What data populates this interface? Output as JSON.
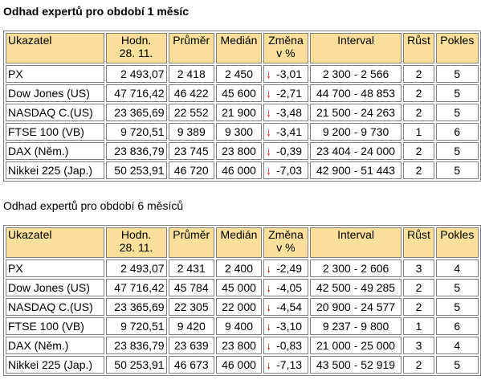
{
  "sections": [
    {
      "title": "Odhad expertů pro období 1 měsíc",
      "bold": true,
      "headers": [
        "Ukazatel",
        "Hodn.\n28. 11.",
        "Průměr",
        "Medián",
        "Změna\nv %",
        "Interval",
        "Růst",
        "Pokles"
      ],
      "rows": [
        {
          "name": "PX",
          "value": "2 493,07",
          "avg": "2 418",
          "median": "2 450",
          "arrow": "↓",
          "change": "-3,01",
          "interval": "2 300 - 2 566",
          "up": "2",
          "down": "5"
        },
        {
          "name": "Dow Jones (US)",
          "value": "47 716,42",
          "avg": "46 422",
          "median": "45 600",
          "arrow": "↓",
          "change": "-2,71",
          "interval": "44 700 - 48 853",
          "up": "2",
          "down": "5"
        },
        {
          "name": "NASDAQ C.(US)",
          "value": "23 365,69",
          "avg": "22 552",
          "median": "21 900",
          "arrow": "↓",
          "change": "-3,48",
          "interval": "21 500 - 24 263",
          "up": "2",
          "down": "5"
        },
        {
          "name": "FTSE 100 (VB)",
          "value": "9 720,51",
          "avg": "9 389",
          "median": "9 300",
          "arrow": "↓",
          "change": "-3,41",
          "interval": "9 200 - 9 730",
          "up": "1",
          "down": "6"
        },
        {
          "name": "DAX (Něm.)",
          "value": "23 836,79",
          "avg": "23 745",
          "median": "23 800",
          "arrow": "↓",
          "change": "-0,39",
          "interval": "23 404 - 24 000",
          "up": "2",
          "down": "5"
        },
        {
          "name": "Nikkei 225 (Jap.)",
          "value": "50 253,91",
          "avg": "46 720",
          "median": "46 000",
          "arrow": "↓",
          "change": "-7,03",
          "interval": "42 900 - 51 443",
          "up": "2",
          "down": "5"
        }
      ]
    },
    {
      "title": "Odhad expertů pro období 6 měsíců",
      "bold": false,
      "headers": [
        "Ukazatel",
        "Hodn.\n28. 11.",
        "Průměr",
        "Medián",
        "Změna\nv %",
        "Interval",
        "Růst",
        "Pokles"
      ],
      "rows": [
        {
          "name": "PX",
          "value": "2 493,07",
          "avg": "2 431",
          "median": "2 400",
          "arrow": "↓",
          "change": "-2,49",
          "interval": "2 300 - 2 606",
          "up": "3",
          "down": "4"
        },
        {
          "name": "Dow Jones (US)",
          "value": "47 716,42",
          "avg": "45 784",
          "median": "45 000",
          "arrow": "↓",
          "change": "-4,05",
          "interval": "42 500 - 49 285",
          "up": "2",
          "down": "5"
        },
        {
          "name": "NASDAQ C.(US)",
          "value": "23 365,69",
          "avg": "22 305",
          "median": "22 000",
          "arrow": "↓",
          "change": "-4,54",
          "interval": "20 900 - 24 577",
          "up": "2",
          "down": "5"
        },
        {
          "name": "FTSE 100 (VB)",
          "value": "9 720,51",
          "avg": "9 420",
          "median": "9 400",
          "arrow": "↓",
          "change": "-3,10",
          "interval": "9 237 - 9 800",
          "up": "1",
          "down": "6"
        },
        {
          "name": "DAX (Něm.)",
          "value": "23 836,79",
          "avg": "23 639",
          "median": "23 800",
          "arrow": "↓",
          "change": "-0,83",
          "interval": "21 000 - 25 000",
          "up": "3",
          "down": "4"
        },
        {
          "name": "Nikkei 225 (Jap.)",
          "value": "50 253,91",
          "avg": "46 673",
          "median": "46 000",
          "arrow": "↓",
          "change": "-7,13",
          "interval": "43 500 - 52 919",
          "up": "2",
          "down": "5"
        }
      ]
    }
  ],
  "colors": {
    "header_bg": "#f9df9a",
    "arrow": "#d40000",
    "border": "#808080"
  }
}
